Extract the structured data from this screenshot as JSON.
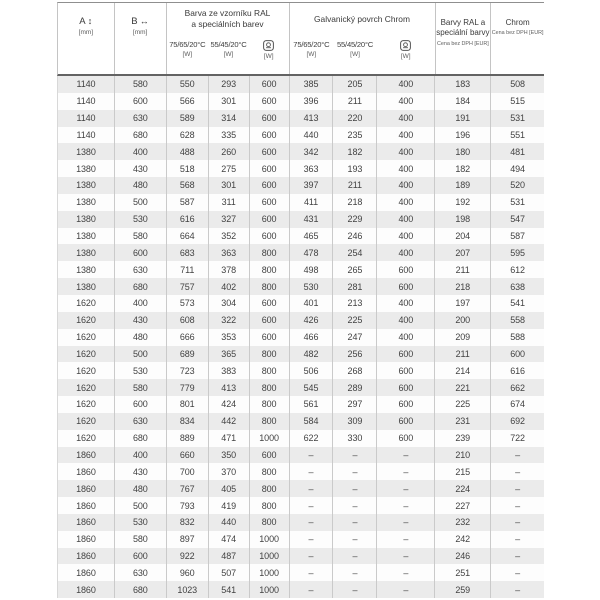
{
  "header": {
    "col_a": {
      "label": "A",
      "arrow": "↕",
      "unit": "[mm]"
    },
    "col_b": {
      "label": "B",
      "arrow": "↔",
      "unit": "[mm]"
    },
    "group_ral": {
      "line1": "Barva ze vzorníku RAL",
      "line2": "a speciálních barev"
    },
    "group_chrom": {
      "line1": "Galvanický povrch Chrom",
      "line2": ""
    },
    "temp_hi": "75/65/20°C",
    "temp_lo": "55/45/20°C",
    "unit_w": "[W]",
    "price_ral": {
      "line1": "Barvy RAL a",
      "line2": "speciální barvy",
      "note": "Cena bez DPH [EUR]"
    },
    "price_chrom": {
      "line1": "Chrom",
      "note": "Cena bez DPH [EUR]"
    }
  },
  "icons": {
    "heating_element": "electric-heating-element-in-rounded-square"
  },
  "colors": {
    "row_alt": "#ebebeb",
    "row_base": "#fdfdfd",
    "grid_line": "#cacaca",
    "header_rule": "#636363",
    "text": "#3d3d3d"
  },
  "table": {
    "rows": [
      [
        "1140",
        "580",
        "550",
        "293",
        "600",
        "385",
        "205",
        "400",
        "183",
        "508"
      ],
      [
        "1140",
        "600",
        "566",
        "301",
        "600",
        "396",
        "211",
        "400",
        "184",
        "515"
      ],
      [
        "1140",
        "630",
        "589",
        "314",
        "600",
        "413",
        "220",
        "400",
        "191",
        "531"
      ],
      [
        "1140",
        "680",
        "628",
        "335",
        "600",
        "440",
        "235",
        "400",
        "196",
        "551"
      ],
      [
        "1380",
        "400",
        "488",
        "260",
        "600",
        "342",
        "182",
        "400",
        "180",
        "481"
      ],
      [
        "1380",
        "430",
        "518",
        "275",
        "600",
        "363",
        "193",
        "400",
        "182",
        "494"
      ],
      [
        "1380",
        "480",
        "568",
        "301",
        "600",
        "397",
        "211",
        "400",
        "189",
        "520"
      ],
      [
        "1380",
        "500",
        "587",
        "311",
        "600",
        "411",
        "218",
        "400",
        "192",
        "531"
      ],
      [
        "1380",
        "530",
        "616",
        "327",
        "600",
        "431",
        "229",
        "400",
        "198",
        "547"
      ],
      [
        "1380",
        "580",
        "664",
        "352",
        "600",
        "465",
        "246",
        "400",
        "204",
        "587"
      ],
      [
        "1380",
        "600",
        "683",
        "363",
        "800",
        "478",
        "254",
        "400",
        "207",
        "595"
      ],
      [
        "1380",
        "630",
        "711",
        "378",
        "800",
        "498",
        "265",
        "600",
        "211",
        "612"
      ],
      [
        "1380",
        "680",
        "757",
        "402",
        "800",
        "530",
        "281",
        "600",
        "218",
        "638"
      ],
      [
        "1620",
        "400",
        "573",
        "304",
        "600",
        "401",
        "213",
        "400",
        "197",
        "541"
      ],
      [
        "1620",
        "430",
        "608",
        "322",
        "600",
        "426",
        "225",
        "400",
        "200",
        "558"
      ],
      [
        "1620",
        "480",
        "666",
        "353",
        "600",
        "466",
        "247",
        "400",
        "209",
        "588"
      ],
      [
        "1620",
        "500",
        "689",
        "365",
        "800",
        "482",
        "256",
        "600",
        "211",
        "600"
      ],
      [
        "1620",
        "530",
        "723",
        "383",
        "800",
        "506",
        "268",
        "600",
        "214",
        "616"
      ],
      [
        "1620",
        "580",
        "779",
        "413",
        "800",
        "545",
        "289",
        "600",
        "221",
        "662"
      ],
      [
        "1620",
        "600",
        "801",
        "424",
        "800",
        "561",
        "297",
        "600",
        "225",
        "674"
      ],
      [
        "1620",
        "630",
        "834",
        "442",
        "800",
        "584",
        "309",
        "600",
        "231",
        "692"
      ],
      [
        "1620",
        "680",
        "889",
        "471",
        "1000",
        "622",
        "330",
        "600",
        "239",
        "722"
      ],
      [
        "1860",
        "400",
        "660",
        "350",
        "600",
        "–",
        "–",
        "–",
        "210",
        "–"
      ],
      [
        "1860",
        "430",
        "700",
        "370",
        "800",
        "–",
        "–",
        "–",
        "215",
        "–"
      ],
      [
        "1860",
        "480",
        "767",
        "405",
        "800",
        "–",
        "–",
        "–",
        "224",
        "–"
      ],
      [
        "1860",
        "500",
        "793",
        "419",
        "800",
        "–",
        "–",
        "–",
        "227",
        "–"
      ],
      [
        "1860",
        "530",
        "832",
        "440",
        "800",
        "–",
        "–",
        "–",
        "232",
        "–"
      ],
      [
        "1860",
        "580",
        "897",
        "474",
        "1000",
        "–",
        "–",
        "–",
        "242",
        "–"
      ],
      [
        "1860",
        "600",
        "922",
        "487",
        "1000",
        "–",
        "–",
        "–",
        "246",
        "–"
      ],
      [
        "1860",
        "630",
        "960",
        "507",
        "1000",
        "–",
        "–",
        "–",
        "251",
        "–"
      ],
      [
        "1860",
        "680",
        "1023",
        "541",
        "1000",
        "–",
        "–",
        "–",
        "259",
        "–"
      ]
    ]
  }
}
